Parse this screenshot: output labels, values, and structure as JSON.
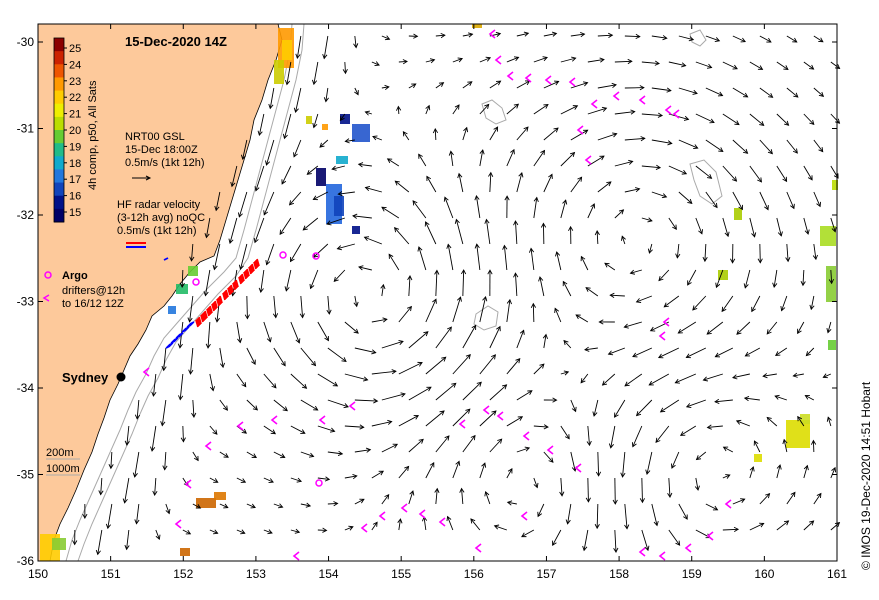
{
  "title": "15-Dec-2020 14Z",
  "credit": "© IMOS 19-Dec-2020 14:51 Hobart",
  "axes": {
    "x_ticks": [
      "150",
      "151",
      "152",
      "153",
      "154",
      "155",
      "156",
      "157",
      "158",
      "159",
      "160",
      "161"
    ],
    "y_ticks": [
      "-30",
      "-31",
      "-32",
      "-33",
      "-34",
      "-35",
      "-36"
    ]
  },
  "colorbar": {
    "label": "4h comp, p50, All Sats",
    "ticks": [
      "25",
      "24",
      "23",
      "22",
      "21",
      "20",
      "19",
      "18",
      "17",
      "16",
      "15"
    ]
  },
  "legend": {
    "nrt": {
      "line1": "NRT00 GSL",
      "line2": "15-Dec 18:00Z",
      "line3": "0.5m/s (1kt 12h)"
    },
    "hf": {
      "line1": "HF radar velocity",
      "line2": "(3-12h avg) noQC",
      "line3": "0.5m/s (1kt 12h)"
    },
    "argo": {
      "label": "Argo"
    },
    "drifters": {
      "line1": "drifters@12h",
      "line2": "to 16/12 12Z"
    },
    "depth": {
      "line1": "200m",
      "line2": "1000m"
    }
  },
  "places": {
    "city": "Sydney"
  },
  "colors": {
    "land": "#fdc99b",
    "drifter": "#ff00ff",
    "hf_east": "#ff0000",
    "hf_west": "#0000ff",
    "argo": "#ff00ff",
    "isobath": "#aaaaaa"
  }
}
